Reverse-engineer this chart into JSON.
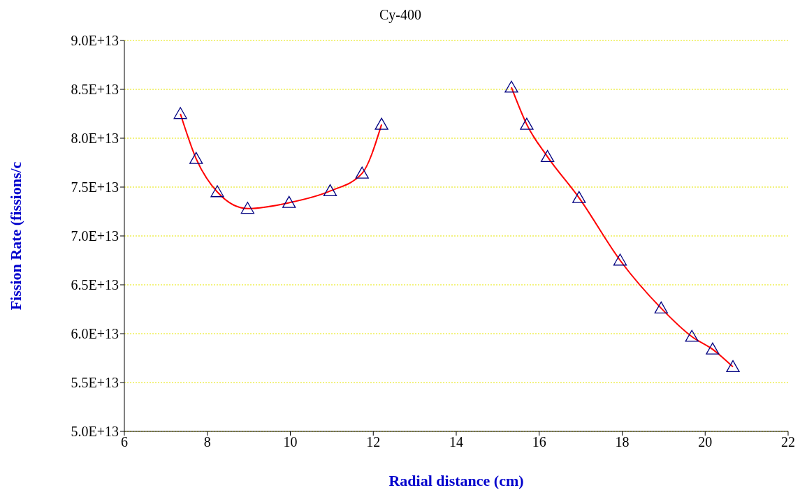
{
  "chart_data": {
    "type": "line",
    "title": "Cy-400",
    "xlabel": "Radial distance (cm)",
    "ylabel": "Fission Rate (fissions/c",
    "xlim": [
      6,
      22
    ],
    "xticks": [
      6,
      8,
      10,
      12,
      14,
      16,
      18,
      20,
      22
    ],
    "ylim": [
      50000000000000.0,
      90000000000000.0
    ],
    "yticks": [
      {
        "value": 50000000000000.0,
        "label": "5.0E+13"
      },
      {
        "value": 55000000000000.0,
        "label": "5.5E+13"
      },
      {
        "value": 60000000000000.0,
        "label": "6.0E+13"
      },
      {
        "value": 65000000000000.0,
        "label": "6.5E+13"
      },
      {
        "value": 70000000000000.0,
        "label": "7.0E+13"
      },
      {
        "value": 75000000000000.0,
        "label": "7.5E+13"
      },
      {
        "value": 80000000000000.0,
        "label": "8.0E+13"
      },
      {
        "value": 85000000000000.0,
        "label": "8.5E+13"
      },
      {
        "value": 90000000000000.0,
        "label": "9.0E+13"
      }
    ],
    "grid": "y",
    "series": [
      {
        "type": "line",
        "color": "#ff0000",
        "marker": "none",
        "x": [
          7.35,
          7.73,
          8.24,
          8.97,
          9.97,
          10.96,
          11.73,
          12.2
        ],
        "values": [
          82500000000000.0,
          77900000000000.0,
          74500000000000.0,
          72800000000000.0,
          73400000000000.0,
          74600000000000.0,
          76400000000000.0,
          81400000000000.0
        ]
      },
      {
        "type": "line",
        "color": "#ff0000",
        "marker": "none",
        "x": [
          15.33,
          15.7,
          16.2,
          16.96,
          17.95,
          18.94,
          19.68,
          20.18,
          20.67
        ],
        "values": [
          85200000000000.0,
          81400000000000.0,
          78100000000000.0,
          73900000000000.0,
          67500000000000.0,
          62600000000000.0,
          59700000000000.0,
          58400000000000.0,
          56600000000000.0
        ]
      },
      {
        "type": "scatter",
        "color": "#000080",
        "marker": "triangle",
        "x": [
          7.35,
          7.73,
          8.24,
          8.97,
          9.97,
          10.96,
          11.73,
          12.2,
          15.33,
          15.7,
          16.2,
          16.96,
          17.95,
          18.94,
          19.68,
          20.18,
          20.67
        ],
        "values": [
          82500000000000.0,
          77900000000000.0,
          74500000000000.0,
          72800000000000.0,
          73400000000000.0,
          74600000000000.0,
          76400000000000.0,
          81400000000000.0,
          85200000000000.0,
          81400000000000.0,
          78100000000000.0,
          73900000000000.0,
          67500000000000.0,
          62600000000000.0,
          59700000000000.0,
          58400000000000.0,
          56600000000000.0
        ]
      }
    ]
  }
}
